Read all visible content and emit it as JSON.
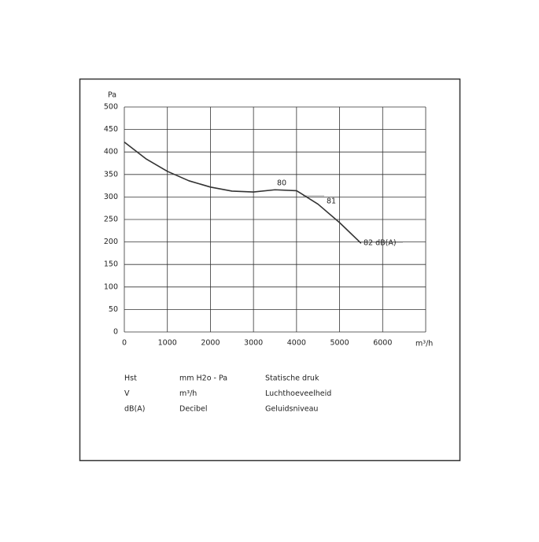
{
  "chart_data": {
    "type": "line",
    "y_label": "Pa",
    "x_label": "m³/h",
    "x": [
      0,
      500,
      1000,
      1500,
      2000,
      2500,
      3000,
      3500,
      4000,
      4500,
      5000,
      5500
    ],
    "series": [
      {
        "name": "Hst",
        "color": "#333333",
        "values": [
          422,
          385,
          357,
          336,
          322,
          313,
          311,
          316,
          314,
          284,
          243,
          197
        ]
      }
    ],
    "xlim": [
      0,
      7000
    ],
    "xticks": [
      0,
      1000,
      2000,
      3000,
      4000,
      5000,
      6000
    ],
    "ylim": [
      0,
      500
    ],
    "yticks": [
      0,
      50,
      100,
      150,
      200,
      250,
      300,
      350,
      400,
      450,
      500
    ],
    "grid": true,
    "annotations": [
      "80",
      "81",
      "82 dB(A)"
    ]
  },
  "legend_table": {
    "rows": [
      [
        "Hst",
        "mm H2o - Pa",
        "Statische druk"
      ],
      [
        "V",
        "m³/h",
        "Luchthoeveelheid"
      ],
      [
        "dB(A)",
        "Decibel",
        "Geluidsniveau"
      ]
    ]
  }
}
